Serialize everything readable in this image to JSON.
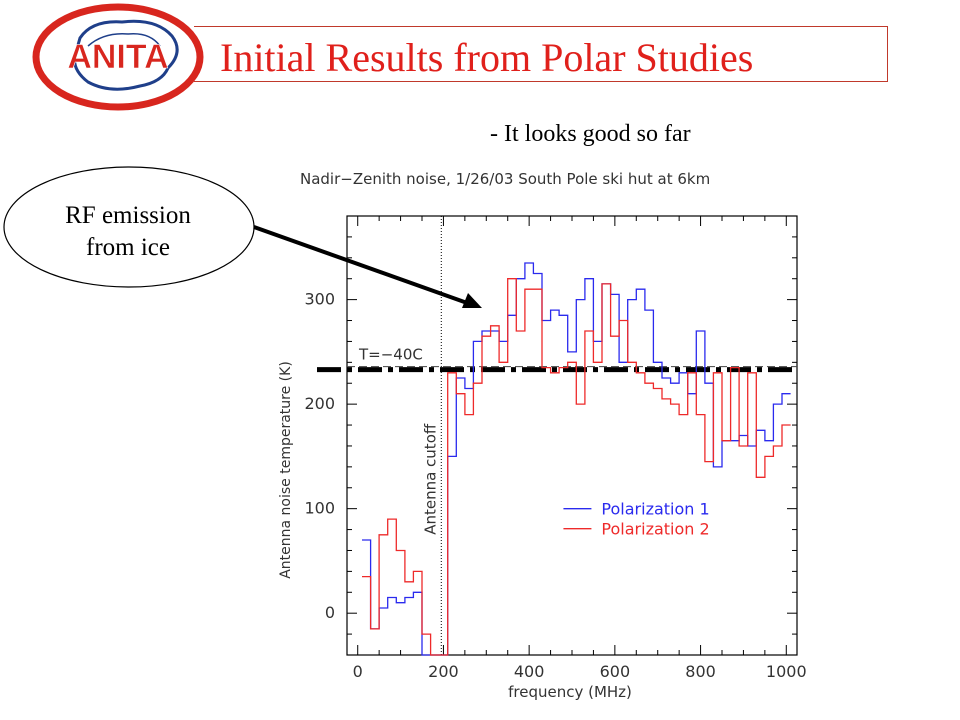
{
  "logo": {
    "text": "ANITA"
  },
  "header": {
    "title": "Initial Results from Polar Studies"
  },
  "subtitle": "- It looks good so far",
  "callout": {
    "line1": "RF emission",
    "line2": "from ice"
  },
  "colors": {
    "title": "#e0201b",
    "series1": "#2a2aee",
    "series2": "#ee2a2a",
    "frame": "#000000"
  },
  "chart_data": {
    "type": "line",
    "title": "Nadir−Zenith noise, 1/26/03 South Pole ski hut at 6km",
    "xlabel": "frequency (MHz)",
    "ylabel": "Antenna noise temperature (K)",
    "xlim": [
      -25,
      1025
    ],
    "ylim": [
      -40,
      380
    ],
    "xticks": [
      0,
      200,
      400,
      600,
      800,
      1000
    ],
    "yticks": [
      0,
      100,
      200,
      300
    ],
    "grid": false,
    "legend_position": "bottom-right",
    "annotations": {
      "temp_line_label": "T=−40C",
      "temp_line_value": 233,
      "cutoff_label": "Antenna cutoff",
      "cutoff_x": 195
    },
    "series": [
      {
        "name": "Polarization 1",
        "color": "#2a2aee",
        "x": [
          20,
          40,
          60,
          80,
          100,
          120,
          140,
          160,
          180,
          200,
          220,
          240,
          260,
          280,
          300,
          320,
          340,
          360,
          380,
          400,
          420,
          440,
          460,
          480,
          500,
          520,
          540,
          560,
          580,
          600,
          620,
          640,
          660,
          680,
          700,
          720,
          740,
          760,
          780,
          800,
          820,
          840,
          860,
          880,
          900,
          920,
          940,
          960,
          980,
          1000
        ],
        "y": [
          70,
          -15,
          5,
          15,
          10,
          15,
          20,
          -40,
          -40,
          -40,
          150,
          225,
          215,
          260,
          270,
          270,
          260,
          285,
          320,
          335,
          325,
          280,
          290,
          285,
          250,
          300,
          320,
          260,
          315,
          305,
          240,
          300,
          310,
          290,
          240,
          225,
          220,
          230,
          210,
          270,
          220,
          140,
          165,
          165,
          170,
          160,
          175,
          165,
          200,
          210
        ]
      },
      {
        "name": "Polarization 2",
        "color": "#ee2a2a",
        "x": [
          20,
          40,
          60,
          80,
          100,
          120,
          140,
          160,
          180,
          200,
          220,
          240,
          260,
          280,
          300,
          320,
          340,
          360,
          380,
          400,
          420,
          440,
          460,
          480,
          500,
          520,
          540,
          560,
          580,
          600,
          620,
          640,
          660,
          680,
          700,
          720,
          740,
          760,
          780,
          800,
          820,
          840,
          860,
          880,
          900,
          920,
          940,
          960,
          980,
          1000
        ],
        "y": [
          35,
          -15,
          75,
          90,
          60,
          30,
          40,
          -20,
          -40,
          -40,
          230,
          210,
          190,
          220,
          265,
          275,
          240,
          320,
          270,
          310,
          310,
          235,
          230,
          235,
          240,
          200,
          270,
          240,
          315,
          265,
          280,
          240,
          230,
          220,
          215,
          205,
          200,
          190,
          230,
          190,
          145,
          230,
          165,
          235,
          160,
          230,
          130,
          150,
          160,
          180
        ]
      }
    ]
  }
}
